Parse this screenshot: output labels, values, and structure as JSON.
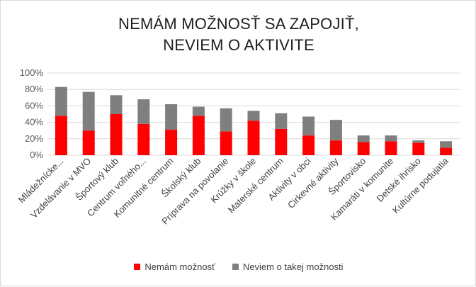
{
  "chart_data": {
    "type": "bar",
    "stacked": true,
    "title_lines": [
      "NEMÁM MOŽNOSŤ SA ZAPOJIŤ,",
      "NEVIEM O AKTIVITE"
    ],
    "xlabel": "",
    "ylabel": "",
    "ylim": [
      0,
      100
    ],
    "y_ticks": [
      "0%",
      "20%",
      "40%",
      "60%",
      "80%",
      "100%"
    ],
    "y_tick_values": [
      0,
      20,
      40,
      60,
      80,
      100
    ],
    "grid": true,
    "legend_position": "bottom",
    "categories": [
      "Mládežnícke...",
      "Vzdelávanie v MVO",
      "Športový klub",
      "Centrum voľného...",
      "Komunitné centrum",
      "Školský klub",
      "Príprava na povolanie",
      "Krúžky v škole",
      "Materské centrum",
      "Aktivity v obci",
      "Cirkevné aktivity",
      "Športovisko",
      "Kamaráti v komunite",
      "Detské ihrisko",
      "Kultúrne podujatia"
    ],
    "series": [
      {
        "name": "Nemám možnosť",
        "color": "#ff0000",
        "values": [
          48,
          30,
          50,
          38,
          31,
          48,
          29,
          42,
          32,
          24,
          18,
          16,
          17,
          15,
          9
        ]
      },
      {
        "name": "Neviem o takej možnosti",
        "color": "#7f7f7f",
        "values": [
          35,
          47,
          23,
          30,
          31,
          11,
          28,
          12,
          19,
          23,
          25,
          8,
          7,
          3,
          8
        ]
      }
    ]
  }
}
